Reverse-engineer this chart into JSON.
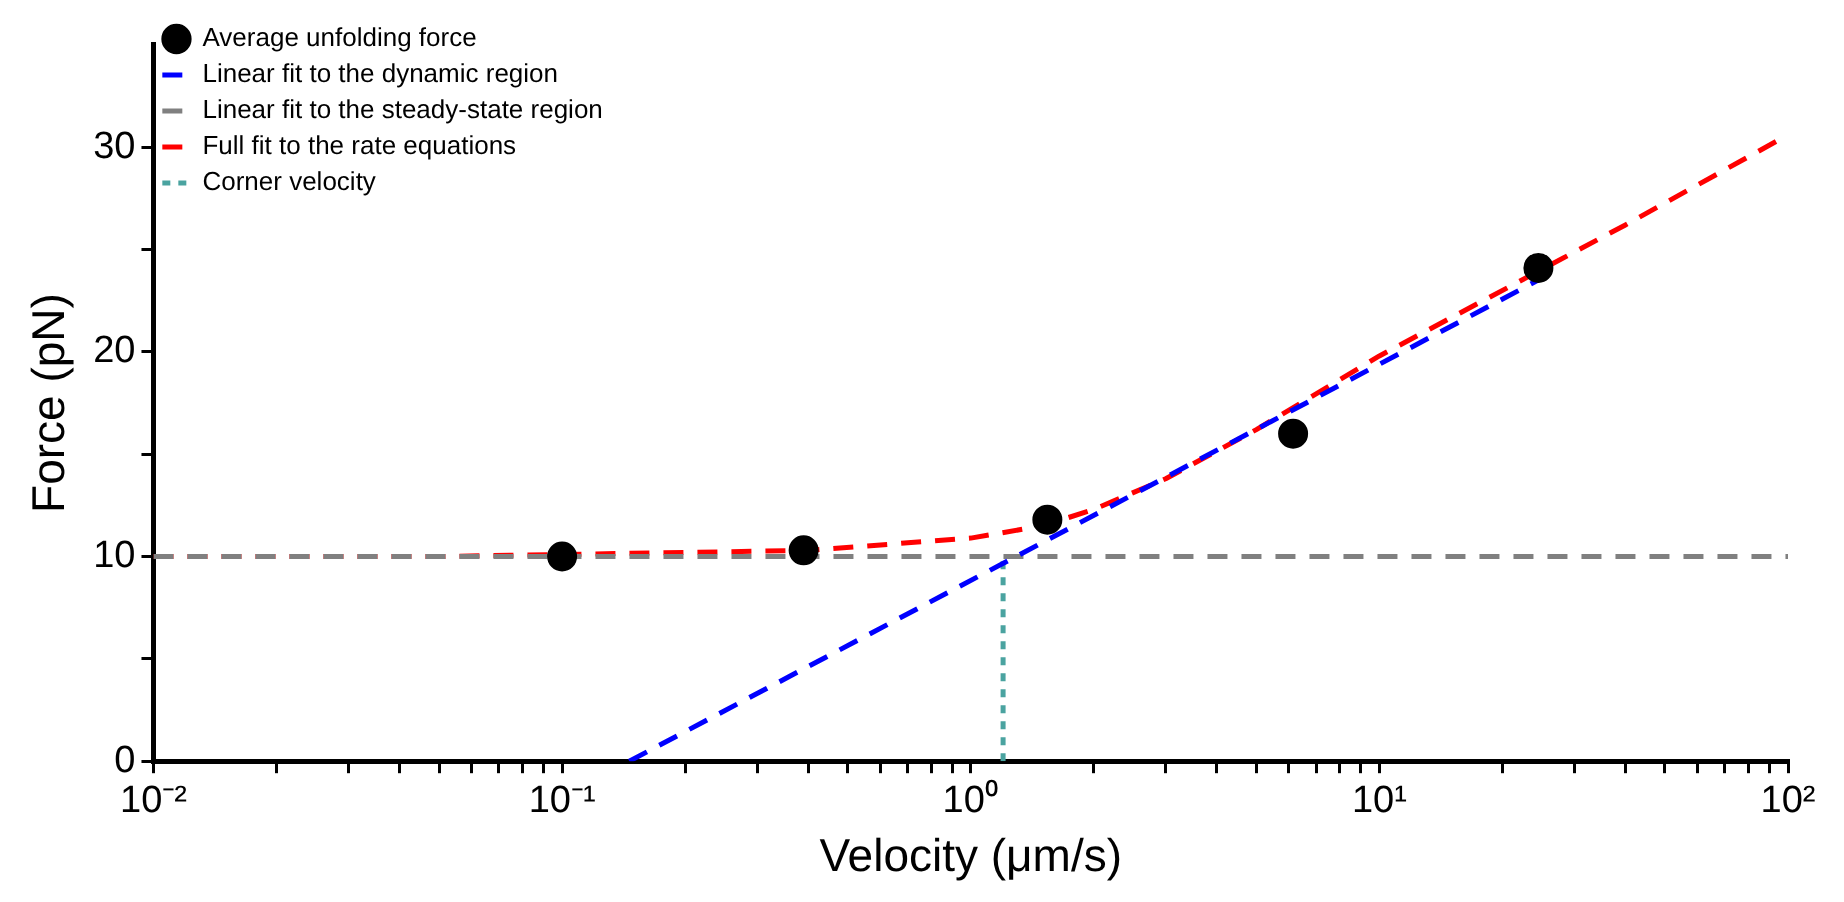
{
  "chart_data": {
    "type": "scatter",
    "xlabel": "Velocity (μm/s)",
    "ylabel": "Force (pN)",
    "log": "x",
    "grid": false,
    "legend": "top left",
    "xlim": [
      0.01,
      100
    ],
    "xticks": [
      {
        "value": 0.01,
        "label": "10⁻²"
      },
      {
        "value": 0.02,
        "label": null
      },
      {
        "value": 0.03,
        "label": null
      },
      {
        "value": 0.04,
        "label": null
      },
      {
        "value": 0.05,
        "label": null
      },
      {
        "value": 0.06,
        "label": null
      },
      {
        "value": 0.07,
        "label": null
      },
      {
        "value": 0.08,
        "label": null
      },
      {
        "value": 0.09,
        "label": null
      },
      {
        "value": 0.1,
        "label": "10⁻¹"
      },
      {
        "value": 0.2,
        "label": null
      },
      {
        "value": 0.3,
        "label": null
      },
      {
        "value": 0.4,
        "label": null
      },
      {
        "value": 0.5,
        "label": null
      },
      {
        "value": 0.6,
        "label": null
      },
      {
        "value": 0.7,
        "label": null
      },
      {
        "value": 0.8,
        "label": null
      },
      {
        "value": 0.9,
        "label": null
      },
      {
        "value": 1,
        "label": "10⁰"
      },
      {
        "value": 2,
        "label": null
      },
      {
        "value": 3,
        "label": null
      },
      {
        "value": 4,
        "label": null
      },
      {
        "value": 5,
        "label": null
      },
      {
        "value": 6,
        "label": null
      },
      {
        "value": 7,
        "label": null
      },
      {
        "value": 8,
        "label": null
      },
      {
        "value": 9,
        "label": null
      },
      {
        "value": 10,
        "label": "10¹"
      },
      {
        "value": 20,
        "label": null
      },
      {
        "value": 30,
        "label": null
      },
      {
        "value": 40,
        "label": null
      },
      {
        "value": 50,
        "label": null
      },
      {
        "value": 60,
        "label": null
      },
      {
        "value": 70,
        "label": null
      },
      {
        "value": 80,
        "label": null
      },
      {
        "value": 90,
        "label": null
      },
      {
        "value": 100,
        "label": "10²"
      }
    ],
    "ylim": [
      0,
      35
    ],
    "yticks": [
      0,
      {
        "value": 5,
        "label": null
      },
      10,
      {
        "value": 15,
        "label": null
      },
      20,
      {
        "value": 25,
        "label": null
      },
      30
    ],
    "series": [
      {
        "name": "Average unfolding force",
        "type": "scatter",
        "color": "#000000",
        "marker": "circle",
        "x": [
          0.1,
          0.39,
          1.54,
          6.15,
          24.5
        ],
        "values": [
          10,
          10.3,
          11.8,
          16,
          24.1
        ]
      },
      {
        "name": "Linear fit to the dynamic region",
        "type": "line",
        "color": "#0000ff",
        "marker": "none",
        "line_style": "dashed",
        "x": [
          0.146,
          25
        ],
        "values": [
          0,
          23.6
        ]
      },
      {
        "name": "Linear fit to the steady-state region",
        "type": "line",
        "color": "#808080",
        "marker": "none",
        "line_style": "dashed",
        "x": [
          0.01,
          100
        ],
        "values": [
          10,
          10
        ]
      },
      {
        "name": "Full fit to the rate equations",
        "type": "line",
        "color": "#ff0000",
        "marker": "none",
        "line_style": "dashed",
        "x": [
          0.01,
          0.05,
          0.4,
          1,
          1.5,
          2,
          3,
          5,
          10,
          40,
          100
        ],
        "values": [
          10,
          10,
          10.3,
          10.9,
          11.5,
          12.3,
          13.8,
          16.2,
          19.8,
          26.2,
          30.6
        ]
      },
      {
        "name": "Corner velocity",
        "type": "line",
        "color": "#4aa3a0",
        "marker": "none",
        "line_style": "dotted",
        "x": [
          1.2,
          1.2
        ],
        "values": [
          0,
          10
        ]
      }
    ]
  }
}
